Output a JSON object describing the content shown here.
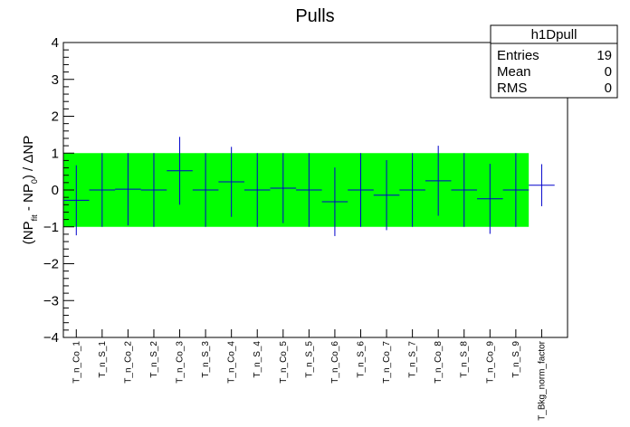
{
  "chart_data": {
    "type": "scatter",
    "title": "Pulls",
    "ylabel": {
      "main1": "(NP",
      "sub1": "fit",
      "main2": " - NP",
      "sub2": "0",
      "main3": ") / ΔNP"
    },
    "ylim": [
      -4,
      4
    ],
    "yticks": [
      "4",
      "3",
      "2",
      "1",
      "0",
      "−1",
      "−2",
      "−3",
      "−4"
    ],
    "band": {
      "low": -1,
      "high": 1,
      "color": "#00ff00"
    },
    "marker_color": "#0000cc",
    "categories": [
      "T_n_Co_1",
      "T_n_S_1",
      "T_n_Co_2",
      "T_n_S_2",
      "T_n_Co_3",
      "T_n_S_3",
      "T_n_Co_4",
      "T_n_S_4",
      "T_n_Co_5",
      "T_n_S_5",
      "T_n_Co_6",
      "T_n_S_6",
      "T_n_Co_7",
      "T_n_S_7",
      "T_n_Co_8",
      "T_n_S_8",
      "T_n_Co_9",
      "T_n_S_9",
      "T_Bkg_norm_factor"
    ],
    "values": [
      -0.28,
      0.0,
      0.02,
      0.0,
      0.52,
      0.0,
      0.22,
      0.0,
      0.05,
      0.0,
      -0.32,
      0.0,
      -0.14,
      0.0,
      0.25,
      0.0,
      -0.24,
      0.0,
      0.13
    ],
    "errors": [
      0.95,
      1.0,
      0.98,
      1.0,
      0.92,
      1.0,
      0.95,
      1.0,
      0.95,
      1.0,
      0.93,
      1.0,
      0.95,
      1.0,
      0.95,
      1.0,
      0.95,
      1.0,
      0.57
    ],
    "stats": {
      "name": "h1Dpull",
      "rows": [
        {
          "label": "Entries",
          "value": "19"
        },
        {
          "label": "Mean",
          "value": "0"
        },
        {
          "label": "RMS",
          "value": "0"
        }
      ]
    }
  }
}
